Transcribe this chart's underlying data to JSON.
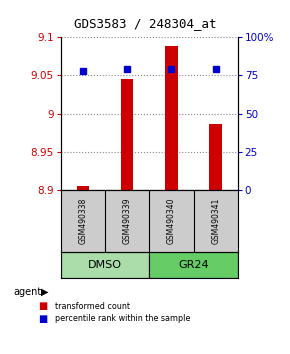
{
  "title": "GDS3583 / 248304_at",
  "samples": [
    "GSM490338",
    "GSM490339",
    "GSM490340",
    "GSM490341"
  ],
  "red_values": [
    8.906,
    9.046,
    9.088,
    8.986
  ],
  "blue_values": [
    78,
    79,
    79,
    79
  ],
  "ylim_left": [
    8.9,
    9.1
  ],
  "ylim_right": [
    0,
    100
  ],
  "yticks_left": [
    8.9,
    8.95,
    9.0,
    9.05,
    9.1
  ],
  "yticks_right": [
    0,
    25,
    50,
    75,
    100
  ],
  "ytick_labels_left": [
    "8.9",
    "8.95",
    "9",
    "9.05",
    "9.1"
  ],
  "ytick_labels_right": [
    "0",
    "25",
    "50",
    "75",
    "100%"
  ],
  "bar_color": "#cc0000",
  "dot_color": "#0000cc",
  "groups": [
    {
      "label": "DMSO",
      "samples": [
        0,
        1
      ]
    },
    {
      "label": "GR24",
      "samples": [
        2,
        3
      ]
    }
  ],
  "group_colors": [
    "#aaddaa",
    "#66cc66"
  ],
  "agent_label": "agent",
  "legend_red": "transformed count",
  "legend_blue": "percentile rank within the sample",
  "grid_color": "#888888",
  "background_label_row": "#cccccc"
}
